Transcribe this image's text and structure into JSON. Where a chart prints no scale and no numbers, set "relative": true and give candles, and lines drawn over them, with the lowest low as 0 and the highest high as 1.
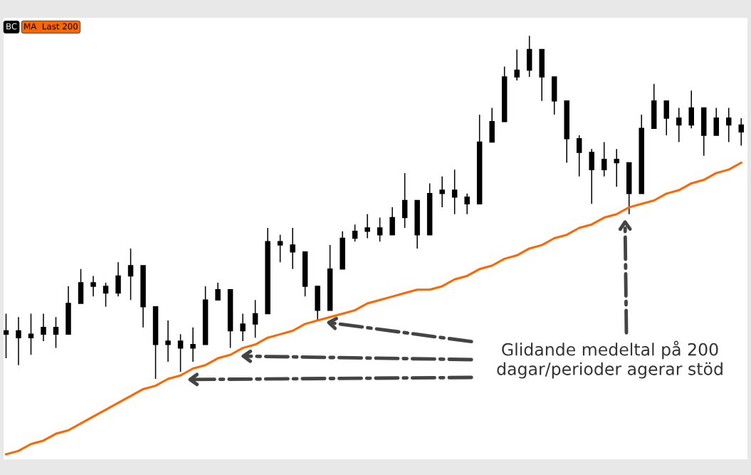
{
  "chart_data": {
    "type": "candlestick",
    "relative": true,
    "legend": "top left",
    "tick_labels": false,
    "categories": [
      null,
      null,
      null,
      null,
      null,
      null,
      null,
      null,
      null,
      null,
      null,
      null,
      null,
      null,
      null,
      null,
      null,
      null,
      null,
      null,
      null,
      null,
      null,
      null,
      null,
      null,
      null,
      null,
      null,
      null,
      null,
      null,
      null,
      null,
      null,
      null,
      null,
      null,
      null,
      null,
      null,
      null,
      null,
      null,
      null,
      null,
      null,
      null,
      null,
      null,
      null,
      null,
      null,
      null,
      null,
      null,
      null,
      null,
      null,
      null
    ],
    "series": [
      {
        "name": "BC",
        "color": "#000000",
        "ohlc": [
          [
            0.13,
            0.19,
            0.06,
            0.14
          ],
          [
            0.14,
            0.18,
            0.04,
            0.12
          ],
          [
            0.12,
            0.19,
            0.07,
            0.13
          ],
          [
            0.13,
            0.19,
            0.11,
            0.15
          ],
          [
            0.15,
            0.18,
            0.09,
            0.13
          ],
          [
            0.13,
            0.27,
            0.13,
            0.22
          ],
          [
            0.22,
            0.32,
            0.22,
            0.28
          ],
          [
            0.28,
            0.3,
            0.24,
            0.27
          ],
          [
            0.27,
            0.28,
            0.21,
            0.25
          ],
          [
            0.25,
            0.34,
            0.24,
            0.3
          ],
          [
            0.3,
            0.38,
            0.23,
            0.33
          ],
          [
            0.33,
            0.33,
            0.15,
            0.21
          ],
          [
            0.21,
            0.21,
            0.0,
            0.1
          ],
          [
            0.1,
            0.17,
            0.05,
            0.11
          ],
          [
            0.11,
            0.13,
            0.02,
            0.09
          ],
          [
            0.09,
            0.15,
            0.05,
            0.1
          ],
          [
            0.1,
            0.27,
            0.1,
            0.23
          ],
          [
            0.23,
            0.28,
            0.23,
            0.26
          ],
          [
            0.26,
            0.26,
            0.09,
            0.14
          ],
          [
            0.14,
            0.19,
            0.11,
            0.16
          ],
          [
            0.16,
            0.23,
            0.12,
            0.19
          ],
          [
            0.19,
            0.44,
            0.19,
            0.4
          ],
          [
            0.4,
            0.42,
            0.34,
            0.39
          ],
          [
            0.39,
            0.44,
            0.32,
            0.37
          ],
          [
            0.37,
            0.37,
            0.24,
            0.27
          ],
          [
            0.27,
            0.27,
            0.17,
            0.2
          ],
          [
            0.2,
            0.39,
            0.2,
            0.32
          ],
          [
            0.32,
            0.43,
            0.32,
            0.41
          ],
          [
            0.41,
            0.45,
            0.4,
            0.43
          ],
          [
            0.43,
            0.48,
            0.41,
            0.44
          ],
          [
            0.44,
            0.47,
            0.4,
            0.42
          ],
          [
            0.42,
            0.5,
            0.42,
            0.47
          ],
          [
            0.47,
            0.6,
            0.44,
            0.52
          ],
          [
            0.52,
            0.52,
            0.38,
            0.42
          ],
          [
            0.42,
            0.57,
            0.42,
            0.54
          ],
          [
            0.54,
            0.59,
            0.5,
            0.55
          ],
          [
            0.55,
            0.61,
            0.48,
            0.53
          ],
          [
            0.53,
            0.54,
            0.48,
            0.51
          ],
          [
            0.51,
            0.77,
            0.51,
            0.69
          ],
          [
            0.69,
            0.79,
            0.69,
            0.75
          ],
          [
            0.75,
            0.91,
            0.75,
            0.88
          ],
          [
            0.88,
            0.96,
            0.87,
            0.9
          ],
          [
            0.9,
            1.0,
            0.88,
            0.96
          ],
          [
            0.96,
            0.96,
            0.81,
            0.88
          ],
          [
            0.88,
            0.88,
            0.77,
            0.81
          ],
          [
            0.81,
            0.81,
            0.63,
            0.7
          ],
          [
            0.7,
            0.71,
            0.59,
            0.66
          ],
          [
            0.66,
            0.67,
            0.51,
            0.61
          ],
          [
            0.61,
            0.69,
            0.59,
            0.64
          ],
          [
            0.64,
            0.67,
            0.56,
            0.63
          ],
          [
            0.63,
            0.63,
            0.48,
            0.54
          ],
          [
            0.54,
            0.77,
            0.54,
            0.73
          ],
          [
            0.73,
            0.86,
            0.73,
            0.81
          ],
          [
            0.81,
            0.81,
            0.71,
            0.76
          ],
          [
            0.76,
            0.79,
            0.69,
            0.74
          ],
          [
            0.74,
            0.84,
            0.73,
            0.79
          ],
          [
            0.79,
            0.79,
            0.65,
            0.71
          ],
          [
            0.71,
            0.79,
            0.71,
            0.76
          ],
          [
            0.76,
            0.79,
            0.69,
            0.74
          ],
          [
            0.74,
            0.76,
            0.68,
            0.72
          ]
        ]
      },
      {
        "name": "MA  Last 200",
        "type": "line",
        "color": "#ff6600",
        "values": [
          -0.22,
          -0.21,
          -0.19,
          -0.18,
          -0.16,
          -0.15,
          -0.13,
          -0.11,
          -0.09,
          -0.07,
          -0.05,
          -0.03,
          -0.02,
          0.0,
          0.01,
          0.03,
          0.04,
          0.06,
          0.07,
          0.09,
          0.1,
          0.12,
          0.13,
          0.14,
          0.16,
          0.17,
          0.18,
          0.19,
          0.2,
          0.22,
          0.23,
          0.24,
          0.25,
          0.26,
          0.26,
          0.27,
          0.29,
          0.3,
          0.32,
          0.33,
          0.35,
          0.36,
          0.38,
          0.39,
          0.41,
          0.42,
          0.44,
          0.45,
          0.47,
          0.48,
          0.5,
          0.51,
          0.52,
          0.54,
          0.55,
          0.57,
          0.58,
          0.6,
          0.61,
          0.63
        ]
      }
    ],
    "annotations": [
      "Glidande medeltal på 200\ndagar/perioder agerar stöd"
    ]
  }
}
